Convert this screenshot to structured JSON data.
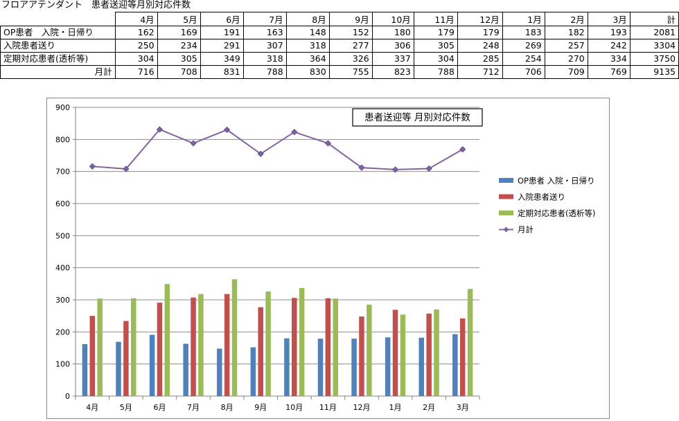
{
  "page_title": "フロアアテンダント　患者送迎等月別対応件数",
  "table": {
    "header": [
      "4月",
      "5月",
      "6月",
      "7月",
      "8月",
      "9月",
      "10月",
      "11月",
      "12月",
      "1月",
      "2月",
      "3月",
      "計"
    ],
    "rows": [
      {
        "label": "OP患者　入院・日帰り",
        "values": [
          "162",
          "169",
          "191",
          "163",
          "148",
          "152",
          "180",
          "179",
          "179",
          "183",
          "182",
          "193",
          "2081"
        ]
      },
      {
        "label": "入院患者送り",
        "values": [
          "250",
          "234",
          "291",
          "307",
          "318",
          "277",
          "306",
          "305",
          "248",
          "269",
          "257",
          "242",
          "3304"
        ]
      },
      {
        "label": "定期対応患者(透析等)",
        "values": [
          "304",
          "305",
          "349",
          "318",
          "364",
          "326",
          "337",
          "304",
          "285",
          "254",
          "270",
          "334",
          "3750"
        ]
      },
      {
        "label": "月計",
        "values": [
          "716",
          "708",
          "831",
          "788",
          "830",
          "755",
          "823",
          "788",
          "712",
          "706",
          "709",
          "769",
          "9135"
        ]
      }
    ]
  },
  "chart_data": {
    "type": "bar",
    "title": "患者送迎等 月別対応件数",
    "categories": [
      "4月",
      "5月",
      "6月",
      "7月",
      "8月",
      "9月",
      "10月",
      "11月",
      "12月",
      "1月",
      "2月",
      "3月"
    ],
    "ylim": [
      0,
      900
    ],
    "yticks": [
      0,
      100,
      200,
      300,
      400,
      500,
      600,
      700,
      800,
      900
    ],
    "grid": true,
    "legend_position": "right",
    "series": [
      {
        "name": "OP患者 入院・日帰り",
        "type": "bar",
        "color": "#4f81bd",
        "values": [
          162,
          169,
          191,
          163,
          148,
          152,
          180,
          179,
          179,
          183,
          182,
          193
        ]
      },
      {
        "name": "入院患者送り",
        "type": "bar",
        "color": "#c0504d",
        "values": [
          250,
          234,
          291,
          307,
          318,
          277,
          306,
          305,
          248,
          269,
          257,
          242
        ]
      },
      {
        "name": "定期対応患者(透析等)",
        "type": "bar",
        "color": "#9bbb59",
        "values": [
          304,
          305,
          349,
          318,
          364,
          326,
          337,
          304,
          285,
          254,
          270,
          334
        ]
      },
      {
        "name": "月計",
        "type": "line",
        "color": "#8064a2",
        "values": [
          716,
          708,
          831,
          788,
          830,
          755,
          823,
          788,
          712,
          706,
          709,
          769
        ]
      }
    ]
  }
}
